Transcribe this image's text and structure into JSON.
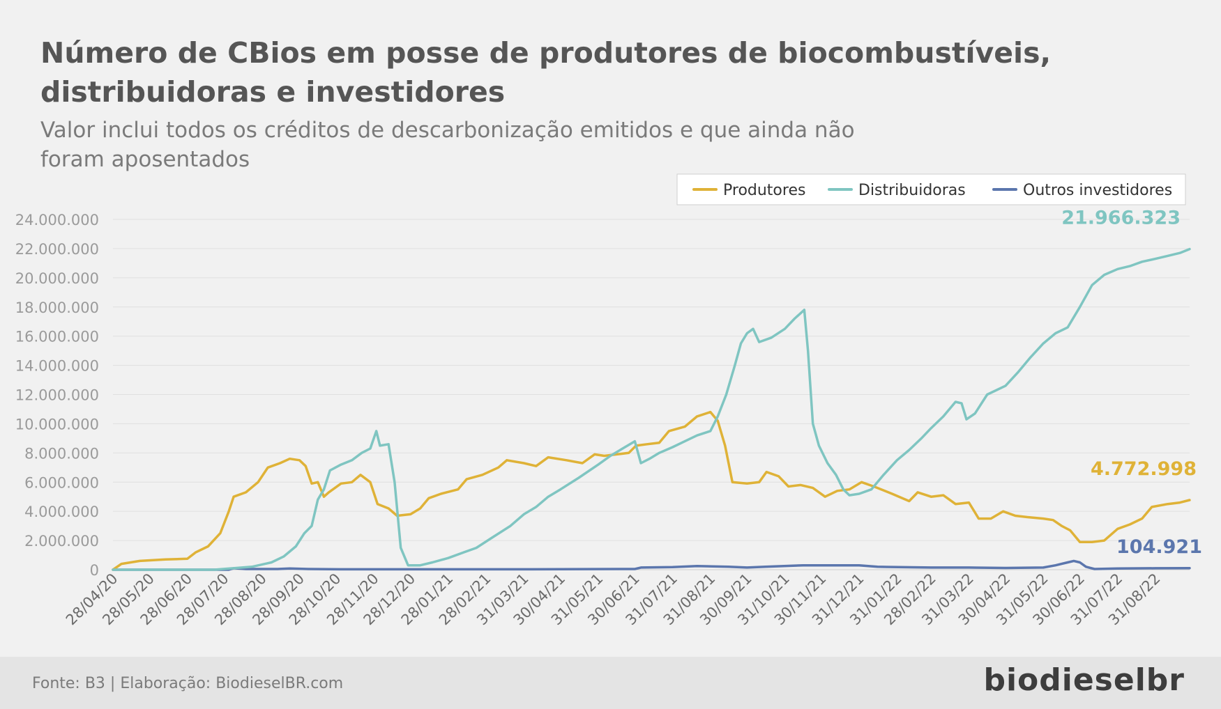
{
  "header": {
    "title_line1": "Número de CBios em posse de produtores de biocombustíveis,",
    "title_line2": "distribuidoras e investidores",
    "subtitle_line1": "Valor inclui todos os créditos de descarbonização emitidos e que ainda não",
    "subtitle_line2": "foram aposentados"
  },
  "footer": {
    "source": "Fonte: B3 | Elaboração: BiodieselBR.com",
    "logo": "biodieselbr"
  },
  "chart_data": {
    "type": "line",
    "legend_position": "top-right",
    "grid": "horizontal",
    "ylim": [
      0,
      24000000
    ],
    "y_ticks": [
      0,
      2000000,
      4000000,
      6000000,
      8000000,
      10000000,
      12000000,
      14000000,
      16000000,
      18000000,
      20000000,
      22000000,
      24000000
    ],
    "y_tick_labels": [
      "0",
      "2.000.000",
      "4.000.000",
      "6.000.000",
      "8.000.000",
      "10.000.000",
      "12.000.000",
      "14.000.000",
      "16.000.000",
      "18.000.000",
      "20.000.000",
      "22.000.000",
      "24.000.000"
    ],
    "x_range": [
      "2020-04-28",
      "2022-09-28"
    ],
    "x_ticks": [
      "2020-04-28",
      "2020-05-28",
      "2020-06-28",
      "2020-07-28",
      "2020-08-28",
      "2020-09-28",
      "2020-10-28",
      "2020-11-28",
      "2020-12-28",
      "2021-01-28",
      "2021-02-28",
      "2021-03-31",
      "2021-04-30",
      "2021-05-31",
      "2021-06-30",
      "2021-07-31",
      "2021-08-31",
      "2021-09-30",
      "2021-10-31",
      "2021-11-30",
      "2021-12-31",
      "2022-01-31",
      "2022-02-28",
      "2022-03-31",
      "2022-04-30",
      "2022-05-31",
      "2022-06-30",
      "2022-07-31",
      "2022-08-31"
    ],
    "x_tick_labels": [
      "28/04/20",
      "28/05/20",
      "28/06/20",
      "28/07/20",
      "28/08/20",
      "28/09/20",
      "28/10/20",
      "28/11/20",
      "28/12/20",
      "28/01/21",
      "28/02/21",
      "31/03/21",
      "30/04/21",
      "31/05/21",
      "30/06/21",
      "31/07/21",
      "31/08/21",
      "30/09/21",
      "31/10/21",
      "30/11/21",
      "31/12/21",
      "31/01/22",
      "28/02/22",
      "31/03/22",
      "30/04/22",
      "31/05/22",
      "30/06/22",
      "31/07/22",
      "31/08/22"
    ],
    "series": [
      {
        "name": "Produtores",
        "color": "#dfb237",
        "end_label": "4.772.998",
        "points": [
          [
            "2020-04-28",
            0
          ],
          [
            "2020-05-05",
            400000
          ],
          [
            "2020-05-20",
            600000
          ],
          [
            "2020-06-10",
            700000
          ],
          [
            "2020-06-28",
            750000
          ],
          [
            "2020-07-05",
            1200000
          ],
          [
            "2020-07-15",
            1600000
          ],
          [
            "2020-07-25",
            2500000
          ],
          [
            "2020-08-01",
            4000000
          ],
          [
            "2020-08-05",
            5000000
          ],
          [
            "2020-08-15",
            5300000
          ],
          [
            "2020-08-25",
            6000000
          ],
          [
            "2020-09-02",
            7000000
          ],
          [
            "2020-09-12",
            7300000
          ],
          [
            "2020-09-20",
            7600000
          ],
          [
            "2020-09-28",
            7500000
          ],
          [
            "2020-10-03",
            7100000
          ],
          [
            "2020-10-08",
            5900000
          ],
          [
            "2020-10-13",
            6000000
          ],
          [
            "2020-10-18",
            5000000
          ],
          [
            "2020-10-22",
            5300000
          ],
          [
            "2020-11-01",
            5900000
          ],
          [
            "2020-11-10",
            6000000
          ],
          [
            "2020-11-17",
            6500000
          ],
          [
            "2020-11-25",
            6000000
          ],
          [
            "2020-12-01",
            4500000
          ],
          [
            "2020-12-10",
            4200000
          ],
          [
            "2020-12-17",
            3700000
          ],
          [
            "2020-12-28",
            3800000
          ],
          [
            "2021-01-05",
            4200000
          ],
          [
            "2021-01-12",
            4900000
          ],
          [
            "2021-01-22",
            5200000
          ],
          [
            "2021-02-05",
            5500000
          ],
          [
            "2021-02-12",
            6200000
          ],
          [
            "2021-02-25",
            6500000
          ],
          [
            "2021-03-10",
            7000000
          ],
          [
            "2021-03-17",
            7500000
          ],
          [
            "2021-03-31",
            7300000
          ],
          [
            "2021-04-10",
            7100000
          ],
          [
            "2021-04-20",
            7700000
          ],
          [
            "2021-05-05",
            7500000
          ],
          [
            "2021-05-18",
            7300000
          ],
          [
            "2021-05-28",
            7900000
          ],
          [
            "2021-06-05",
            7800000
          ],
          [
            "2021-06-15",
            7900000
          ],
          [
            "2021-06-25",
            8000000
          ],
          [
            "2021-07-01",
            8500000
          ],
          [
            "2021-07-10",
            8600000
          ],
          [
            "2021-07-20",
            8700000
          ],
          [
            "2021-07-28",
            9500000
          ],
          [
            "2021-08-10",
            9800000
          ],
          [
            "2021-08-20",
            10500000
          ],
          [
            "2021-08-31",
            10800000
          ],
          [
            "2021-09-06",
            10200000
          ],
          [
            "2021-09-12",
            8500000
          ],
          [
            "2021-09-18",
            6000000
          ],
          [
            "2021-09-30",
            5900000
          ],
          [
            "2021-10-10",
            6000000
          ],
          [
            "2021-10-16",
            6700000
          ],
          [
            "2021-10-26",
            6400000
          ],
          [
            "2021-11-03",
            5700000
          ],
          [
            "2021-11-13",
            5800000
          ],
          [
            "2021-11-23",
            5600000
          ],
          [
            "2021-12-03",
            5000000
          ],
          [
            "2021-12-13",
            5400000
          ],
          [
            "2021-12-23",
            5500000
          ],
          [
            "2022-01-02",
            6000000
          ],
          [
            "2022-01-12",
            5700000
          ],
          [
            "2022-01-27",
            5200000
          ],
          [
            "2022-02-10",
            4700000
          ],
          [
            "2022-02-17",
            5300000
          ],
          [
            "2022-02-28",
            5000000
          ],
          [
            "2022-03-10",
            5100000
          ],
          [
            "2022-03-20",
            4500000
          ],
          [
            "2022-03-31",
            4600000
          ],
          [
            "2022-04-08",
            3500000
          ],
          [
            "2022-04-18",
            3500000
          ],
          [
            "2022-04-28",
            4000000
          ],
          [
            "2022-05-08",
            3700000
          ],
          [
            "2022-05-18",
            3600000
          ],
          [
            "2022-05-31",
            3500000
          ],
          [
            "2022-06-08",
            3400000
          ],
          [
            "2022-06-15",
            3000000
          ],
          [
            "2022-06-22",
            2700000
          ],
          [
            "2022-06-30",
            1900000
          ],
          [
            "2022-07-10",
            1900000
          ],
          [
            "2022-07-20",
            2000000
          ],
          [
            "2022-07-31",
            2800000
          ],
          [
            "2022-08-10",
            3100000
          ],
          [
            "2022-08-20",
            3500000
          ],
          [
            "2022-08-28",
            4300000
          ],
          [
            "2022-09-10",
            4500000
          ],
          [
            "2022-09-20",
            4600000
          ],
          [
            "2022-09-28",
            4772998
          ]
        ]
      },
      {
        "name": "Distribuidoras",
        "color": "#7fc5c1",
        "end_label": "21.966.323",
        "points": [
          [
            "2020-04-28",
            0
          ],
          [
            "2020-07-20",
            0
          ],
          [
            "2020-08-20",
            200000
          ],
          [
            "2020-09-05",
            500000
          ],
          [
            "2020-09-15",
            900000
          ],
          [
            "2020-09-25",
            1600000
          ],
          [
            "2020-10-02",
            2500000
          ],
          [
            "2020-10-08",
            3000000
          ],
          [
            "2020-10-13",
            4800000
          ],
          [
            "2020-10-18",
            5500000
          ],
          [
            "2020-10-23",
            6800000
          ],
          [
            "2020-11-01",
            7200000
          ],
          [
            "2020-11-10",
            7500000
          ],
          [
            "2020-11-18",
            8000000
          ],
          [
            "2020-11-25",
            8300000
          ],
          [
            "2020-11-30",
            9500000
          ],
          [
            "2020-12-03",
            8500000
          ],
          [
            "2020-12-10",
            8600000
          ],
          [
            "2020-12-15",
            6000000
          ],
          [
            "2020-12-20",
            1500000
          ],
          [
            "2020-12-26",
            300000
          ],
          [
            "2021-01-05",
            300000
          ],
          [
            "2021-01-15",
            500000
          ],
          [
            "2021-01-28",
            800000
          ],
          [
            "2021-02-10",
            1200000
          ],
          [
            "2021-02-20",
            1500000
          ],
          [
            "2021-03-05",
            2200000
          ],
          [
            "2021-03-20",
            3000000
          ],
          [
            "2021-03-31",
            3800000
          ],
          [
            "2021-04-10",
            4300000
          ],
          [
            "2021-04-20",
            5000000
          ],
          [
            "2021-04-30",
            5500000
          ],
          [
            "2021-05-15",
            6300000
          ],
          [
            "2021-05-31",
            7200000
          ],
          [
            "2021-06-10",
            7800000
          ],
          [
            "2021-06-20",
            8300000
          ],
          [
            "2021-06-30",
            8800000
          ],
          [
            "2021-07-05",
            7300000
          ],
          [
            "2021-07-12",
            7600000
          ],
          [
            "2021-07-20",
            8000000
          ],
          [
            "2021-07-31",
            8400000
          ],
          [
            "2021-08-10",
            8800000
          ],
          [
            "2021-08-20",
            9200000
          ],
          [
            "2021-08-31",
            9500000
          ],
          [
            "2021-09-06",
            10500000
          ],
          [
            "2021-09-13",
            12000000
          ],
          [
            "2021-09-20",
            14000000
          ],
          [
            "2021-09-25",
            15500000
          ],
          [
            "2021-09-30",
            16200000
          ],
          [
            "2021-10-05",
            16500000
          ],
          [
            "2021-10-10",
            15600000
          ],
          [
            "2021-10-20",
            15900000
          ],
          [
            "2021-10-31",
            16500000
          ],
          [
            "2021-11-08",
            17200000
          ],
          [
            "2021-11-16",
            17800000
          ],
          [
            "2021-11-19",
            15000000
          ],
          [
            "2021-11-23",
            10000000
          ],
          [
            "2021-11-28",
            8500000
          ],
          [
            "2021-12-05",
            7300000
          ],
          [
            "2021-12-12",
            6500000
          ],
          [
            "2021-12-18",
            5500000
          ],
          [
            "2021-12-23",
            5100000
          ],
          [
            "2021-12-31",
            5200000
          ],
          [
            "2022-01-10",
            5500000
          ],
          [
            "2022-01-20",
            6500000
          ],
          [
            "2022-01-31",
            7500000
          ],
          [
            "2022-02-10",
            8200000
          ],
          [
            "2022-02-20",
            9000000
          ],
          [
            "2022-02-28",
            9700000
          ],
          [
            "2022-03-10",
            10500000
          ],
          [
            "2022-03-20",
            11500000
          ],
          [
            "2022-03-25",
            11400000
          ],
          [
            "2022-03-29",
            10300000
          ],
          [
            "2022-04-05",
            10700000
          ],
          [
            "2022-04-15",
            12000000
          ],
          [
            "2022-04-30",
            12600000
          ],
          [
            "2022-05-10",
            13500000
          ],
          [
            "2022-05-20",
            14500000
          ],
          [
            "2022-05-31",
            15500000
          ],
          [
            "2022-06-10",
            16200000
          ],
          [
            "2022-06-20",
            16600000
          ],
          [
            "2022-06-30",
            18000000
          ],
          [
            "2022-07-10",
            19500000
          ],
          [
            "2022-07-20",
            20200000
          ],
          [
            "2022-07-31",
            20600000
          ],
          [
            "2022-08-10",
            20800000
          ],
          [
            "2022-08-20",
            21100000
          ],
          [
            "2022-08-31",
            21300000
          ],
          [
            "2022-09-10",
            21500000
          ],
          [
            "2022-09-20",
            21700000
          ],
          [
            "2022-09-28",
            21966323
          ]
        ]
      },
      {
        "name": "Outros investidores",
        "color": "#5b76ad",
        "end_label": "104.921",
        "points": [
          [
            "2020-04-28",
            0
          ],
          [
            "2020-08-01",
            0
          ],
          [
            "2020-08-05",
            100000
          ],
          [
            "2020-08-15",
            50000
          ],
          [
            "2020-09-10",
            50000
          ],
          [
            "2020-09-20",
            80000
          ],
          [
            "2020-10-05",
            50000
          ],
          [
            "2020-10-31",
            30000
          ],
          [
            "2021-01-31",
            30000
          ],
          [
            "2021-03-31",
            30000
          ],
          [
            "2021-06-30",
            50000
          ],
          [
            "2021-07-05",
            150000
          ],
          [
            "2021-07-31",
            180000
          ],
          [
            "2021-08-20",
            250000
          ],
          [
            "2021-09-15",
            200000
          ],
          [
            "2021-09-30",
            150000
          ],
          [
            "2021-10-15",
            200000
          ],
          [
            "2021-11-15",
            300000
          ],
          [
            "2021-12-31",
            300000
          ],
          [
            "2022-01-15",
            200000
          ],
          [
            "2022-02-28",
            150000
          ],
          [
            "2022-03-31",
            150000
          ],
          [
            "2022-04-30",
            120000
          ],
          [
            "2022-05-31",
            150000
          ],
          [
            "2022-06-10",
            300000
          ],
          [
            "2022-06-20",
            500000
          ],
          [
            "2022-06-25",
            600000
          ],
          [
            "2022-06-30",
            500000
          ],
          [
            "2022-07-05",
            200000
          ],
          [
            "2022-07-12",
            50000
          ],
          [
            "2022-07-31",
            80000
          ],
          [
            "2022-08-31",
            100000
          ],
          [
            "2022-09-28",
            104921
          ]
        ]
      }
    ]
  }
}
